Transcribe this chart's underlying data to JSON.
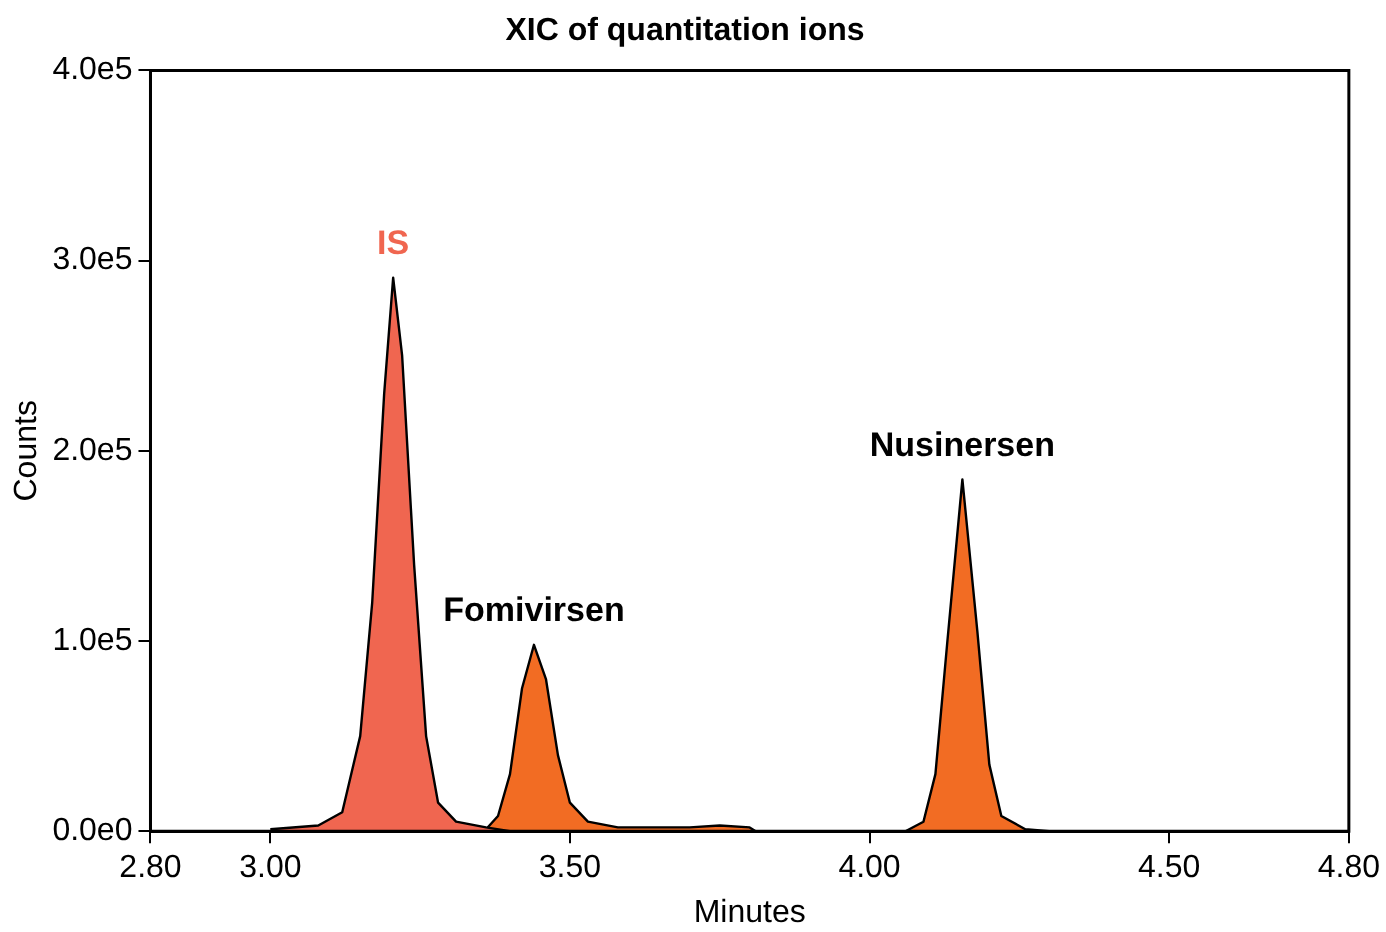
{
  "chart_data": {
    "type": "area",
    "title": "XIC of quantitation ions",
    "xlabel": "Minutes",
    "ylabel": "Counts",
    "xlim": [
      2.8,
      4.8
    ],
    "xticks": [
      {
        "value": 2.8,
        "label": "2.80"
      },
      {
        "value": 3,
        "label": "3.00"
      },
      {
        "value": 3.5,
        "label": "3.50"
      },
      {
        "value": 4,
        "label": "4.00"
      },
      {
        "value": 4.5,
        "label": "4.50"
      },
      {
        "value": 4.8,
        "label": "4.80"
      }
    ],
    "ylim": [
      0,
      400000
    ],
    "yticks": [
      {
        "value": 0,
        "label": "0.0e0"
      },
      {
        "value": 100000,
        "label": "1.0e5"
      },
      {
        "value": 200000,
        "label": "2.0e5"
      },
      {
        "value": 300000,
        "label": "3.0e5"
      },
      {
        "value": 400000,
        "label": "4.0e5"
      }
    ],
    "grid": false,
    "legend": false,
    "series": [
      {
        "name": "IS",
        "color": "#f06650",
        "x": [
          3.0,
          3.08,
          3.12,
          3.15,
          3.17,
          3.19,
          3.205,
          3.22,
          3.24,
          3.26,
          3.28,
          3.31,
          3.36,
          3.4
        ],
        "values": [
          1000,
          3000,
          10000,
          50000,
          120000,
          230000,
          291000,
          250000,
          140000,
          50000,
          15000,
          5000,
          2000,
          0
        ]
      },
      {
        "name": "Fomivirsen",
        "color": "#f26c23",
        "x": [
          3.36,
          3.38,
          3.4,
          3.42,
          3.44,
          3.46,
          3.48,
          3.5,
          3.53,
          3.58,
          3.7,
          3.75,
          3.8,
          3.81
        ],
        "values": [
          1000,
          8000,
          30000,
          75000,
          98000,
          80000,
          40000,
          15000,
          5000,
          2000,
          2000,
          3000,
          2000,
          0
        ]
      },
      {
        "name": "Nusinersen",
        "color": "#f26c23",
        "x": [
          4.06,
          4.09,
          4.11,
          4.13,
          4.155,
          4.18,
          4.2,
          4.22,
          4.26,
          4.3
        ],
        "values": [
          0,
          5000,
          30000,
          100000,
          185000,
          105000,
          35000,
          8000,
          1000,
          0
        ]
      }
    ]
  }
}
